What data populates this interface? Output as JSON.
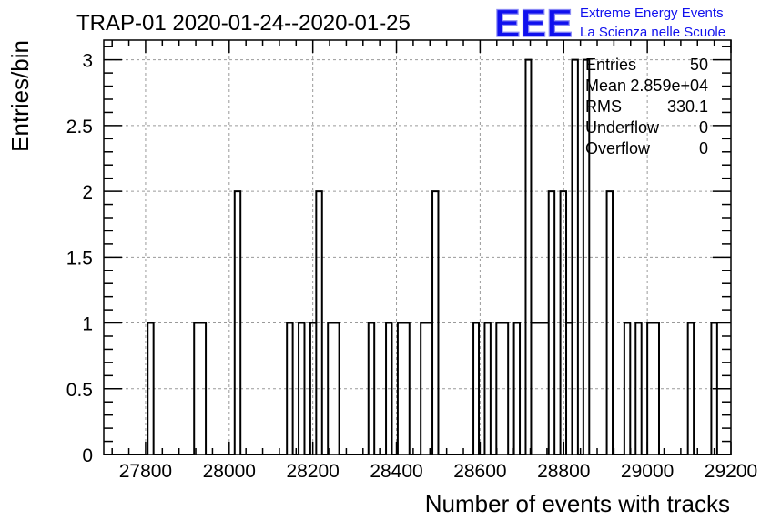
{
  "chart_data": {
    "type": "histogram",
    "title": "TRAP-01 2020-01-24--2020-01-25",
    "xlabel": "Number of events with tracks",
    "ylabel": "Entries/bin",
    "xlim": [
      27700,
      29200
    ],
    "ylim": [
      0,
      3.15
    ],
    "bin_width": 13.92,
    "x_ticks": [
      27800,
      28000,
      28200,
      28400,
      28600,
      28800,
      29000,
      29200
    ],
    "y_ticks": [
      0,
      0.5,
      1,
      1.5,
      2,
      2.5,
      3
    ],
    "x_tick_labels": [
      "27800",
      "28000",
      "28200",
      "28400",
      "28600",
      "28800",
      "29000",
      "29200"
    ],
    "y_tick_labels": [
      "0",
      "0.5",
      "1",
      "1.5",
      "2",
      "2.5",
      "3"
    ],
    "grid": true,
    "bins": [
      {
        "x0": 27805,
        "x1": 27819,
        "count": 1
      },
      {
        "x0": 27916,
        "x1": 27944,
        "count": 1
      },
      {
        "x0": 28013,
        "x1": 28027,
        "count": 2
      },
      {
        "x0": 28138,
        "x1": 28152,
        "count": 1
      },
      {
        "x0": 28166,
        "x1": 28180,
        "count": 1
      },
      {
        "x0": 28194,
        "x1": 28208,
        "count": 1
      },
      {
        "x0": 28208,
        "x1": 28222,
        "count": 2
      },
      {
        "x0": 28236,
        "x1": 28263,
        "count": 1
      },
      {
        "x0": 28333,
        "x1": 28347,
        "count": 1
      },
      {
        "x0": 28375,
        "x1": 28389,
        "count": 1
      },
      {
        "x0": 28403,
        "x1": 28431,
        "count": 1
      },
      {
        "x0": 28458,
        "x1": 28486,
        "count": 1
      },
      {
        "x0": 28486,
        "x1": 28500,
        "count": 2
      },
      {
        "x0": 28584,
        "x1": 28597,
        "count": 1
      },
      {
        "x0": 28611,
        "x1": 28625,
        "count": 1
      },
      {
        "x0": 28639,
        "x1": 28667,
        "count": 1
      },
      {
        "x0": 28681,
        "x1": 28695,
        "count": 1
      },
      {
        "x0": 28709,
        "x1": 28722,
        "count": 3
      },
      {
        "x0": 28722,
        "x1": 28764,
        "count": 1
      },
      {
        "x0": 28764,
        "x1": 28778,
        "count": 2
      },
      {
        "x0": 28792,
        "x1": 28806,
        "count": 2
      },
      {
        "x0": 28806,
        "x1": 28820,
        "count": 1
      },
      {
        "x0": 28820,
        "x1": 28834,
        "count": 3
      },
      {
        "x0": 28847,
        "x1": 28861,
        "count": 3
      },
      {
        "x0": 28903,
        "x1": 28917,
        "count": 2
      },
      {
        "x0": 28945,
        "x1": 28959,
        "count": 1
      },
      {
        "x0": 28972,
        "x1": 28986,
        "count": 1
      },
      {
        "x0": 29000,
        "x1": 29028,
        "count": 1
      },
      {
        "x0": 29097,
        "x1": 29111,
        "count": 1
      },
      {
        "x0": 29153,
        "x1": 29167,
        "count": 1
      }
    ],
    "stats": [
      {
        "label": "Entries",
        "value": "50"
      },
      {
        "label": "Mean",
        "value": "2.859e+04"
      },
      {
        "label": "RMS",
        "value": "330.1"
      },
      {
        "label": "Underflow",
        "value": "0"
      },
      {
        "label": "Overflow",
        "value": "0"
      }
    ]
  },
  "logo": {
    "mark": "EEE",
    "line1": "Extreme Energy Events",
    "line2": "La Scienza nelle Scuole"
  },
  "colors": {
    "logo_blue": "#1010ee",
    "line": "#000000",
    "grid": "#9a9a9a"
  }
}
